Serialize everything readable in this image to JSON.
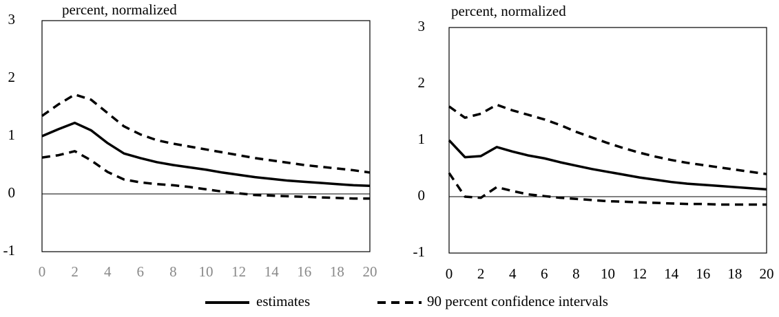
{
  "chart_data": [
    {
      "type": "line",
      "title": "percent, normalized",
      "x": [
        0,
        1,
        2,
        3,
        4,
        5,
        6,
        7,
        8,
        9,
        10,
        11,
        12,
        13,
        14,
        15,
        16,
        17,
        18,
        19,
        20
      ],
      "xlim": [
        0,
        20
      ],
      "xticks": [
        0,
        2,
        4,
        6,
        8,
        10,
        12,
        14,
        16,
        18,
        20
      ],
      "ylim": [
        -1,
        3
      ],
      "yticks": [
        -1,
        0,
        1,
        2,
        3
      ],
      "series": [
        {
          "name": "estimates",
          "color": "#000000",
          "style": "solid",
          "values": [
            1.0,
            1.12,
            1.23,
            1.1,
            0.88,
            0.7,
            0.62,
            0.55,
            0.5,
            0.46,
            0.42,
            0.37,
            0.33,
            0.29,
            0.26,
            0.23,
            0.21,
            0.19,
            0.17,
            0.15,
            0.14
          ]
        },
        {
          "name": "90 percent confidence intervals",
          "color": "#000000",
          "style": "dashed",
          "values": [
            1.35,
            1.55,
            1.72,
            1.63,
            1.4,
            1.17,
            1.03,
            0.93,
            0.87,
            0.82,
            0.77,
            0.72,
            0.67,
            0.62,
            0.58,
            0.54,
            0.5,
            0.47,
            0.44,
            0.41,
            0.37
          ]
        },
        {
          "name": "90 percent confidence intervals",
          "color": "#000000",
          "style": "dashed",
          "values": [
            0.63,
            0.67,
            0.74,
            0.58,
            0.38,
            0.25,
            0.2,
            0.17,
            0.15,
            0.12,
            0.08,
            0.04,
            0.01,
            -0.02,
            -0.03,
            -0.04,
            -0.05,
            -0.06,
            -0.07,
            -0.08,
            -0.08
          ]
        }
      ]
    },
    {
      "type": "line",
      "title": "percent, normalized",
      "x": [
        0,
        1,
        2,
        3,
        4,
        5,
        6,
        7,
        8,
        9,
        10,
        11,
        12,
        13,
        14,
        15,
        16,
        17,
        18,
        19,
        20
      ],
      "xlim": [
        0,
        20
      ],
      "xticks": [
        0,
        2,
        4,
        6,
        8,
        10,
        12,
        14,
        16,
        18,
        20
      ],
      "ylim": [
        -1,
        3
      ],
      "yticks": [
        -1,
        0,
        1,
        2,
        3
      ],
      "series": [
        {
          "name": "estimates",
          "color": "#000000",
          "style": "solid",
          "values": [
            1.0,
            0.7,
            0.72,
            0.88,
            0.8,
            0.73,
            0.68,
            0.61,
            0.55,
            0.49,
            0.44,
            0.39,
            0.34,
            0.3,
            0.26,
            0.23,
            0.21,
            0.19,
            0.17,
            0.15,
            0.13
          ]
        },
        {
          "name": "90 percent confidence intervals",
          "color": "#000000",
          "style": "dashed",
          "values": [
            1.6,
            1.4,
            1.47,
            1.63,
            1.53,
            1.45,
            1.37,
            1.27,
            1.15,
            1.05,
            0.95,
            0.86,
            0.78,
            0.71,
            0.65,
            0.6,
            0.56,
            0.52,
            0.48,
            0.44,
            0.4
          ]
        },
        {
          "name": "90 percent confidence intervals",
          "color": "#000000",
          "style": "dashed",
          "values": [
            0.42,
            0.0,
            -0.02,
            0.17,
            0.1,
            0.04,
            0.01,
            -0.02,
            -0.04,
            -0.06,
            -0.08,
            -0.09,
            -0.1,
            -0.11,
            -0.12,
            -0.13,
            -0.13,
            -0.14,
            -0.14,
            -0.14,
            -0.14
          ]
        }
      ]
    }
  ]
}
